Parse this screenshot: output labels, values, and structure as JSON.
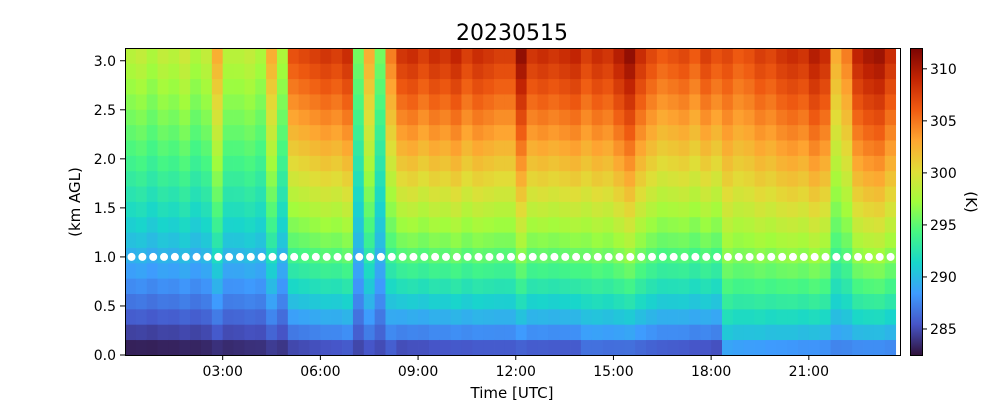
{
  "chart_data": {
    "type": "heatmap",
    "title": "20230515",
    "xlabel": "Time [UTC]",
    "ylabel": "(km AGL)",
    "colorbar_label": "(K)",
    "colormap": "turbo",
    "x_ticks": [
      "03:00",
      "06:00",
      "09:00",
      "12:00",
      "15:00",
      "18:00",
      "21:00"
    ],
    "y_ticks": [
      "0.0",
      "0.5",
      "1.0",
      "1.5",
      "2.0",
      "2.5",
      "3.0"
    ],
    "colorbar_ticks": [
      "285",
      "290",
      "295",
      "300",
      "305",
      "310"
    ],
    "xlim_hours": [
      0.0,
      23.8
    ],
    "ylim_km": [
      0.0,
      3.13
    ],
    "clim_K": [
      282.5,
      312
    ],
    "grid": false,
    "column_hours": [
      0.0,
      0.333,
      0.667,
      1.0,
      1.333,
      1.667,
      2.0,
      2.333,
      2.667,
      3.0,
      3.333,
      3.667,
      4.0,
      4.333,
      4.667,
      5.0,
      5.333,
      5.667,
      6.0,
      6.333,
      6.667,
      7.0,
      7.333,
      7.667,
      8.0,
      8.333,
      8.667,
      9.0,
      9.333,
      9.667,
      10.0,
      10.333,
      10.667,
      11.0,
      11.333,
      11.667,
      12.0,
      12.333,
      12.667,
      13.0,
      13.333,
      13.667,
      14.0,
      14.333,
      14.667,
      15.0,
      15.333,
      15.667,
      16.0,
      16.333,
      16.667,
      17.0,
      17.333,
      17.667,
      18.0,
      18.333,
      18.667,
      19.0,
      19.333,
      19.667,
      20.0,
      20.333,
      20.667,
      21.0,
      21.333,
      21.667,
      22.0,
      22.333,
      22.667,
      23.0,
      23.333
    ],
    "column_top_temperature_K": [
      298.5,
      299.0,
      298.0,
      299.0,
      298.5,
      299.5,
      298.0,
      299.0,
      303.0,
      298.5,
      298.5,
      299.0,
      298.0,
      303.0,
      298.0,
      307.0,
      307.5,
      308.0,
      308.5,
      308.0,
      309.0,
      296.0,
      303.0,
      296.0,
      305.0,
      308.5,
      309.0,
      308.0,
      309.0,
      308.5,
      309.5,
      308.0,
      309.0,
      308.5,
      308.0,
      308.0,
      311.5,
      308.5,
      309.0,
      308.5,
      309.0,
      309.5,
      308.0,
      309.0,
      308.5,
      310.0,
      311.5,
      309.0,
      307.5,
      306.5,
      307.0,
      307.5,
      306.5,
      308.0,
      307.0,
      307.5,
      306.5,
      307.0,
      308.0,
      307.5,
      308.5,
      309.0,
      308.5,
      310.0,
      309.0,
      303.0,
      305.0,
      309.5,
      310.5,
      311.0,
      309.0
    ],
    "overlay_series": {
      "height_km": 1.0,
      "marker": "white dots",
      "color": "#ffffff"
    }
  }
}
